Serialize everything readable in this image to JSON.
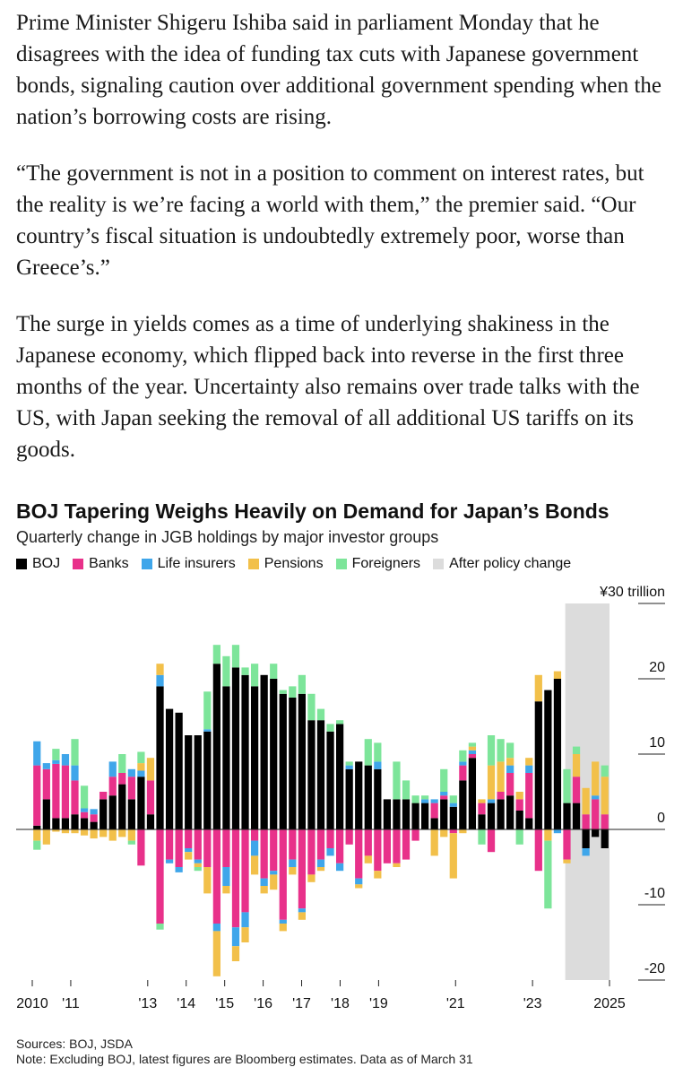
{
  "article": {
    "paragraphs": [
      "Prime Minister Shigeru Ishiba said in parliament Monday that he disagrees with the idea of funding tax cuts with Japanese government bonds, signaling caution over additional government spending when the nation’s borrowing costs are rising.",
      "“The government is not in a position to comment on interest rates, but the reality is we’re facing a world with them,” the premier said. “Our country’s fiscal situation is undoubtedly extremely poor, worse than Greece’s.”",
      "The surge in yields comes as a time of underlying shakiness in the Japanese economy, which flipped back into reverse in the first three months of the year. Uncertainty also remains over trade talks with the US, with Japan seeking the removal of all additional US tariffs on its goods."
    ]
  },
  "chart_data": {
    "type": "bar",
    "stacked": true,
    "title": "BOJ Tapering Weighs Heavily on Demand for Japan’s Bonds",
    "subtitle": "Quarterly change in JGB holdings by major investor groups",
    "ylim": [
      -20,
      30
    ],
    "yticks": [
      {
        "value": 30,
        "label": "¥30 trillion"
      },
      {
        "value": 20,
        "label": "20"
      },
      {
        "value": 10,
        "label": "10"
      },
      {
        "value": 0,
        "label": "0"
      },
      {
        "value": -10,
        "label": "-10"
      },
      {
        "value": -20,
        "label": "-20"
      }
    ],
    "x_start": 2010.0,
    "x_end": 2025.0,
    "xticks": [
      {
        "value": 2010,
        "label": "2010"
      },
      {
        "value": 2011,
        "label": "'11"
      },
      {
        "value": 2013,
        "label": "'13"
      },
      {
        "value": 2014,
        "label": "'14"
      },
      {
        "value": 2015,
        "label": "'15"
      },
      {
        "value": 2016,
        "label": "'16"
      },
      {
        "value": 2017,
        "label": "'17"
      },
      {
        "value": 2018,
        "label": "'18"
      },
      {
        "value": 2019,
        "label": "'19"
      },
      {
        "value": 2021,
        "label": "'21"
      },
      {
        "value": 2023,
        "label": "'23"
      },
      {
        "value": 2025,
        "label": "2025"
      }
    ],
    "highlight": {
      "label": "After policy change",
      "start": 2023.85,
      "end": 2025.0,
      "color": "#dcdcdc"
    },
    "legend_placement": "top",
    "grid": false,
    "series": [
      {
        "name": "BOJ",
        "color": "#000000"
      },
      {
        "name": "Banks",
        "color": "#e8318a"
      },
      {
        "name": "Life insurers",
        "color": "#3fa6ea"
      },
      {
        "name": "Pensions",
        "color": "#f2c04a"
      },
      {
        "name": "Foreigners",
        "color": "#7de59a"
      }
    ],
    "quarters": [
      {
        "x": "2010-Q1",
        "BOJ": 0.5,
        "Banks": 8.0,
        "Life insurers": 3.2,
        "Pensions": -1.5,
        "Foreigners": -1.2
      },
      {
        "x": "2010-Q2",
        "BOJ": 4.0,
        "Banks": 4.0,
        "Life insurers": 0.8,
        "Pensions": -2.0,
        "Foreigners": 0
      },
      {
        "x": "2010-Q3",
        "BOJ": 1.5,
        "Banks": 7.2,
        "Life insurers": 0.5,
        "Pensions": -0.3,
        "Foreigners": 1.5
      },
      {
        "x": "2010-Q4",
        "BOJ": 1.5,
        "Banks": 7.0,
        "Life insurers": 1.5,
        "Pensions": -0.5,
        "Foreigners": 0
      },
      {
        "x": "2011-Q1",
        "BOJ": 2.0,
        "Banks": 4.5,
        "Life insurers": 2.0,
        "Pensions": -0.5,
        "Foreigners": 3.5
      },
      {
        "x": "2011-Q2",
        "BOJ": 1.5,
        "Banks": 0.8,
        "Life insurers": 0.5,
        "Pensions": -0.8,
        "Foreigners": 3.0
      },
      {
        "x": "2011-Q3",
        "BOJ": 1.0,
        "Banks": 1.0,
        "Life insurers": 0.7,
        "Pensions": -1.2,
        "Foreigners": 0
      },
      {
        "x": "2011-Q4",
        "BOJ": 4.0,
        "Banks": 1.0,
        "Life insurers": 0,
        "Pensions": -1.0,
        "Foreigners": 0
      },
      {
        "x": "2012-Q1",
        "BOJ": 4.5,
        "Banks": 2.5,
        "Life insurers": 2.0,
        "Pensions": -1.5,
        "Foreigners": 0
      },
      {
        "x": "2012-Q2",
        "BOJ": 6.0,
        "Banks": 1.5,
        "Life insurers": 0,
        "Pensions": -1.0,
        "Foreigners": 2.5
      },
      {
        "x": "2012-Q3",
        "BOJ": 4.0,
        "Banks": 3.0,
        "Life insurers": 1.0,
        "Pensions": -1.5,
        "Foreigners": -0.5
      },
      {
        "x": "2012-Q4",
        "BOJ": 7.0,
        "Banks": -4.8,
        "Life insurers": 0.8,
        "Pensions": 1.0,
        "Foreigners": 1.5
      },
      {
        "x": "2013-Q1",
        "BOJ": 2.0,
        "Banks": 4.5,
        "Life insurers": 0,
        "Pensions": 3.0,
        "Foreigners": 0
      },
      {
        "x": "2013-Q2",
        "BOJ": 19.0,
        "Banks": -12.5,
        "Life insurers": 1.5,
        "Pensions": 1.5,
        "Foreigners": -0.8
      },
      {
        "x": "2013-Q3",
        "BOJ": 16.0,
        "Banks": -4.0,
        "Life insurers": -0.5,
        "Pensions": 0,
        "Foreigners": 0
      },
      {
        "x": "2013-Q4",
        "BOJ": 15.5,
        "Banks": -5.0,
        "Life insurers": -0.7,
        "Pensions": 0,
        "Foreigners": 0
      },
      {
        "x": "2014-Q1",
        "BOJ": 12.5,
        "Banks": -2.5,
        "Life insurers": -0.5,
        "Pensions": -1.0,
        "Foreigners": 0
      },
      {
        "x": "2014-Q2",
        "BOJ": 12.5,
        "Banks": -4.0,
        "Life insurers": -0.5,
        "Pensions": -0.5,
        "Foreigners": -0.5
      },
      {
        "x": "2014-Q3",
        "BOJ": 13.0,
        "Banks": -5.0,
        "Life insurers": 0.3,
        "Pensions": -3.5,
        "Foreigners": 5.0
      },
      {
        "x": "2014-Q4",
        "BOJ": 22.0,
        "Banks": -12.5,
        "Life insurers": -1.0,
        "Pensions": -6.0,
        "Foreigners": 2.5
      },
      {
        "x": "2015-Q1",
        "BOJ": 19.0,
        "Banks": -5.0,
        "Life insurers": -2.5,
        "Pensions": -1.0,
        "Foreigners": 4.0
      },
      {
        "x": "2015-Q2",
        "BOJ": 21.5,
        "Banks": -13.0,
        "Life insurers": -2.5,
        "Pensions": -2.0,
        "Foreigners": 3.0
      },
      {
        "x": "2015-Q3",
        "BOJ": 20.5,
        "Banks": -11.0,
        "Life insurers": -2.0,
        "Pensions": -2.0,
        "Foreigners": 1.0
      },
      {
        "x": "2015-Q4",
        "BOJ": 19.0,
        "Banks": -1.5,
        "Life insurers": -2.0,
        "Pensions": -2.5,
        "Foreigners": 3.0
      },
      {
        "x": "2016-Q1",
        "BOJ": 20.5,
        "Banks": -6.5,
        "Life insurers": -1.0,
        "Pensions": -1.0,
        "Foreigners": 0
      },
      {
        "x": "2016-Q2",
        "BOJ": 20.0,
        "Banks": -5.5,
        "Life insurers": -0.5,
        "Pensions": -2.0,
        "Foreigners": 2.0
      },
      {
        "x": "2016-Q3",
        "BOJ": 18.0,
        "Banks": -12.0,
        "Life insurers": -0.5,
        "Pensions": -1.0,
        "Foreigners": 0.5
      },
      {
        "x": "2016-Q4",
        "BOJ": 17.5,
        "Banks": -4.0,
        "Life insurers": -1.0,
        "Pensions": -1.0,
        "Foreigners": 1.5
      },
      {
        "x": "2017-Q1",
        "BOJ": 18.0,
        "Banks": -10.5,
        "Life insurers": -0.5,
        "Pensions": -1.0,
        "Foreigners": 2.5
      },
      {
        "x": "2017-Q2",
        "BOJ": 14.5,
        "Banks": -6.0,
        "Life insurers": 0,
        "Pensions": -1.0,
        "Foreigners": 3.5
      },
      {
        "x": "2017-Q3",
        "BOJ": 14.5,
        "Banks": -4.0,
        "Life insurers": -1.0,
        "Pensions": -0.5,
        "Foreigners": 1.5
      },
      {
        "x": "2017-Q4",
        "BOJ": 13.0,
        "Banks": -2.5,
        "Life insurers": -1.0,
        "Pensions": 0,
        "Foreigners": 1.0
      },
      {
        "x": "2018-Q1",
        "BOJ": 14.0,
        "Banks": -4.5,
        "Life insurers": -1.0,
        "Pensions": 0,
        "Foreigners": 0.5
      },
      {
        "x": "2018-Q2",
        "BOJ": 8.0,
        "Banks": -2.0,
        "Life insurers": 0.5,
        "Pensions": 0,
        "Foreigners": 0.5
      },
      {
        "x": "2018-Q3",
        "BOJ": 9.0,
        "Banks": -6.5,
        "Life insurers": -0.8,
        "Pensions": -0.5,
        "Foreigners": 0
      },
      {
        "x": "2018-Q4",
        "BOJ": 8.5,
        "Banks": -3.5,
        "Life insurers": 0,
        "Pensions": -1.0,
        "Foreigners": 3.5
      },
      {
        "x": "2019-Q1",
        "BOJ": 8.0,
        "Banks": -5.5,
        "Life insurers": 1.0,
        "Pensions": -1.0,
        "Foreigners": 2.5
      },
      {
        "x": "2019-Q2",
        "BOJ": 4.0,
        "Banks": -4.5,
        "Life insurers": 0,
        "Pensions": 0,
        "Foreigners": 0
      },
      {
        "x": "2019-Q3",
        "BOJ": 4.0,
        "Banks": -4.5,
        "Life insurers": 0,
        "Pensions": -0.5,
        "Foreigners": 5.0
      },
      {
        "x": "2019-Q4",
        "BOJ": 4.0,
        "Banks": -4.0,
        "Life insurers": 0,
        "Pensions": 0,
        "Foreigners": 2.5
      },
      {
        "x": "2020-Q1",
        "BOJ": 3.5,
        "Banks": -1.5,
        "Life insurers": 0,
        "Pensions": 0,
        "Foreigners": 1.0
      },
      {
        "x": "2020-Q2",
        "BOJ": 3.5,
        "Banks": 0,
        "Life insurers": 0.5,
        "Pensions": 0,
        "Foreigners": 0.5
      },
      {
        "x": "2020-Q3",
        "BOJ": 1.5,
        "Banks": 2.0,
        "Life insurers": 0.5,
        "Pensions": -3.5,
        "Foreigners": 0
      },
      {
        "x": "2020-Q4",
        "BOJ": 4.0,
        "Banks": 0.5,
        "Life insurers": 0.5,
        "Pensions": -1.0,
        "Foreigners": 3.0
      },
      {
        "x": "2021-Q1",
        "BOJ": 3.0,
        "Banks": -0.5,
        "Life insurers": 0.5,
        "Pensions": -6.0,
        "Foreigners": 1.0
      },
      {
        "x": "2021-Q2",
        "BOJ": 6.5,
        "Banks": 2.0,
        "Life insurers": 0.5,
        "Pensions": -0.5,
        "Foreigners": 1.5
      },
      {
        "x": "2021-Q3",
        "BOJ": 9.5,
        "Banks": 0.5,
        "Life insurers": 0.5,
        "Pensions": 0.5,
        "Foreigners": 0.5
      },
      {
        "x": "2021-Q4",
        "BOJ": 2.0,
        "Banks": 1.5,
        "Life insurers": 0,
        "Pensions": 0.5,
        "Foreigners": -2.0
      },
      {
        "x": "2022-Q1",
        "BOJ": 3.5,
        "Banks": -3.0,
        "Life insurers": 0.5,
        "Pensions": 4.5,
        "Foreigners": 4.0
      },
      {
        "x": "2022-Q2",
        "BOJ": 4.0,
        "Banks": 1.0,
        "Life insurers": 0,
        "Pensions": 4.0,
        "Foreigners": 3.0
      },
      {
        "x": "2022-Q3",
        "BOJ": 4.5,
        "Banks": 3.0,
        "Life insurers": 1.0,
        "Pensions": 1.0,
        "Foreigners": 2.0
      },
      {
        "x": "2022-Q4",
        "BOJ": 2.5,
        "Banks": 1.5,
        "Life insurers": 0,
        "Pensions": 1.0,
        "Foreigners": -2.0
      },
      {
        "x": "2023-Q1",
        "BOJ": 1.5,
        "Banks": 6.0,
        "Life insurers": 1.0,
        "Pensions": 1.0,
        "Foreigners": 0
      },
      {
        "x": "2023-Q2",
        "BOJ": 17.0,
        "Banks": -5.5,
        "Life insurers": 0,
        "Pensions": 3.5,
        "Foreigners": 0
      },
      {
        "x": "2023-Q3",
        "BOJ": 18.5,
        "Banks": 0,
        "Life insurers": 0,
        "Pensions": -1.5,
        "Foreigners": -9.0
      },
      {
        "x": "2023-Q4",
        "BOJ": 20.0,
        "Banks": 0,
        "Life insurers": -0.5,
        "Pensions": 1.0,
        "Foreigners": 0
      },
      {
        "x": "2024-Q1",
        "BOJ": 3.5,
        "Banks": -4.0,
        "Life insurers": 0,
        "Pensions": -0.5,
        "Foreigners": 4.5
      },
      {
        "x": "2024-Q2",
        "BOJ": 3.5,
        "Banks": 3.5,
        "Life insurers": 0,
        "Pensions": 3.0,
        "Foreigners": 1.0
      },
      {
        "x": "2024-Q3",
        "BOJ": -2.5,
        "Banks": 2.0,
        "Life insurers": -1.0,
        "Pensions": 3.5,
        "Foreigners": 0
      },
      {
        "x": "2024-Q4",
        "BOJ": -1.0,
        "Banks": 4.0,
        "Life insurers": 0.5,
        "Pensions": 4.5,
        "Foreigners": 0
      },
      {
        "x": "2025-Q1",
        "BOJ": -2.5,
        "Banks": 2.0,
        "Life insurers": 0,
        "Pensions": 5.0,
        "Foreigners": 1.5
      }
    ]
  },
  "notes": {
    "source": "Sources: BOJ, JSDA",
    "note": "Note: Excluding BOJ, latest figures are Bloomberg estimates. Data as of March 31"
  }
}
